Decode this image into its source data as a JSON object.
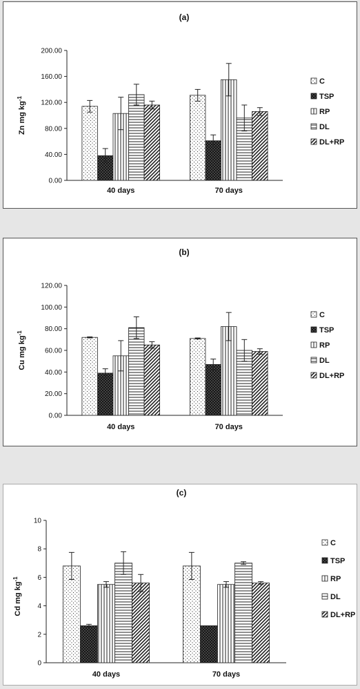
{
  "charts": [
    {
      "panel_label": "(a)",
      "chart_data": {
        "type": "bar",
        "title": "(a)",
        "xlabel": "",
        "ylabel": "Zn mg kg-1",
        "ylabel_parts": [
          "Zn mg kg",
          "-1"
        ],
        "ylim": [
          0,
          200
        ],
        "yticks": [
          0,
          40,
          80,
          120,
          160,
          200
        ],
        "ytick_labels": [
          "0.00",
          "40.00",
          "80.00",
          "120.00",
          "160.00",
          "200.00"
        ],
        "categories": [
          "40 days",
          "70 days"
        ],
        "series": [
          {
            "name": "C",
            "pattern": "dots",
            "values": [
              114,
              131
            ],
            "errors": [
              9,
              9
            ]
          },
          {
            "name": "TSP",
            "pattern": "crosshatch",
            "values": [
              38,
              61
            ],
            "errors": [
              11,
              9
            ]
          },
          {
            "name": "RP",
            "pattern": "vlines",
            "values": [
              103,
              155
            ],
            "errors": [
              25,
              25
            ]
          },
          {
            "name": "DL",
            "pattern": "hlines",
            "values": [
              132,
              96
            ],
            "errors": [
              16,
              20
            ]
          },
          {
            "name": "DL+RP",
            "pattern": "diag",
            "values": [
              116,
              106
            ],
            "errors": [
              6,
              6
            ]
          }
        ],
        "legend_position": "right",
        "grid": false
      }
    },
    {
      "panel_label": "(b)",
      "chart_data": {
        "type": "bar",
        "title": "(b)",
        "xlabel": "",
        "ylabel": "Cu mg kg-1",
        "ylabel_parts": [
          "Cu mg kg",
          "-1"
        ],
        "ylim": [
          0,
          120
        ],
        "yticks": [
          0,
          20,
          40,
          60,
          80,
          100,
          120
        ],
        "ytick_labels": [
          "0.00",
          "20.00",
          "40.00",
          "60.00",
          "80.00",
          "100.00",
          "120.00"
        ],
        "categories": [
          "40 days",
          "70 days"
        ],
        "series": [
          {
            "name": "C",
            "pattern": "dots",
            "values": [
              72,
              71
            ],
            "errors": [
              0.5,
              0.5
            ]
          },
          {
            "name": "TSP",
            "pattern": "crosshatch",
            "values": [
              39,
              47
            ],
            "errors": [
              4,
              5
            ]
          },
          {
            "name": "RP",
            "pattern": "vlines",
            "values": [
              55,
              82
            ],
            "errors": [
              14,
              13
            ]
          },
          {
            "name": "DL",
            "pattern": "hlines",
            "values": [
              81,
              60
            ],
            "errors": [
              10,
              10
            ]
          },
          {
            "name": "DL+RP",
            "pattern": "diag",
            "values": [
              65,
              59
            ],
            "errors": [
              3,
              2.5
            ]
          }
        ],
        "legend_position": "right",
        "grid": false
      }
    },
    {
      "panel_label": "(c)",
      "chart_data": {
        "type": "bar",
        "title": "(c)",
        "xlabel": "",
        "ylabel": "Cd mg kg-1",
        "ylabel_parts": [
          "Cd mg kg",
          "-1"
        ],
        "ylim": [
          0,
          10
        ],
        "yticks": [
          0,
          2,
          4,
          6,
          8,
          10
        ],
        "ytick_labels": [
          "0",
          "2",
          "4",
          "6",
          "8",
          "10"
        ],
        "categories": [
          "40 days",
          "70 days"
        ],
        "series": [
          {
            "name": "C",
            "pattern": "dots",
            "values": [
              6.8,
              6.8
            ],
            "errors": [
              0.95,
              0.95
            ]
          },
          {
            "name": "TSP",
            "pattern": "crosshatch",
            "values": [
              2.6,
              2.6
            ],
            "errors": [
              0.1,
              0
            ]
          },
          {
            "name": "RP",
            "pattern": "vlines",
            "values": [
              5.5,
              5.5
            ],
            "errors": [
              0.2,
              0.2
            ]
          },
          {
            "name": "DL",
            "pattern": "hlines",
            "values": [
              7.0,
              7.0
            ],
            "errors": [
              0.8,
              0.1
            ]
          },
          {
            "name": "DL+RP",
            "pattern": "diag",
            "values": [
              5.6,
              5.6
            ],
            "errors": [
              0.6,
              0.1
            ]
          }
        ],
        "legend_position": "right",
        "grid": false
      }
    }
  ]
}
